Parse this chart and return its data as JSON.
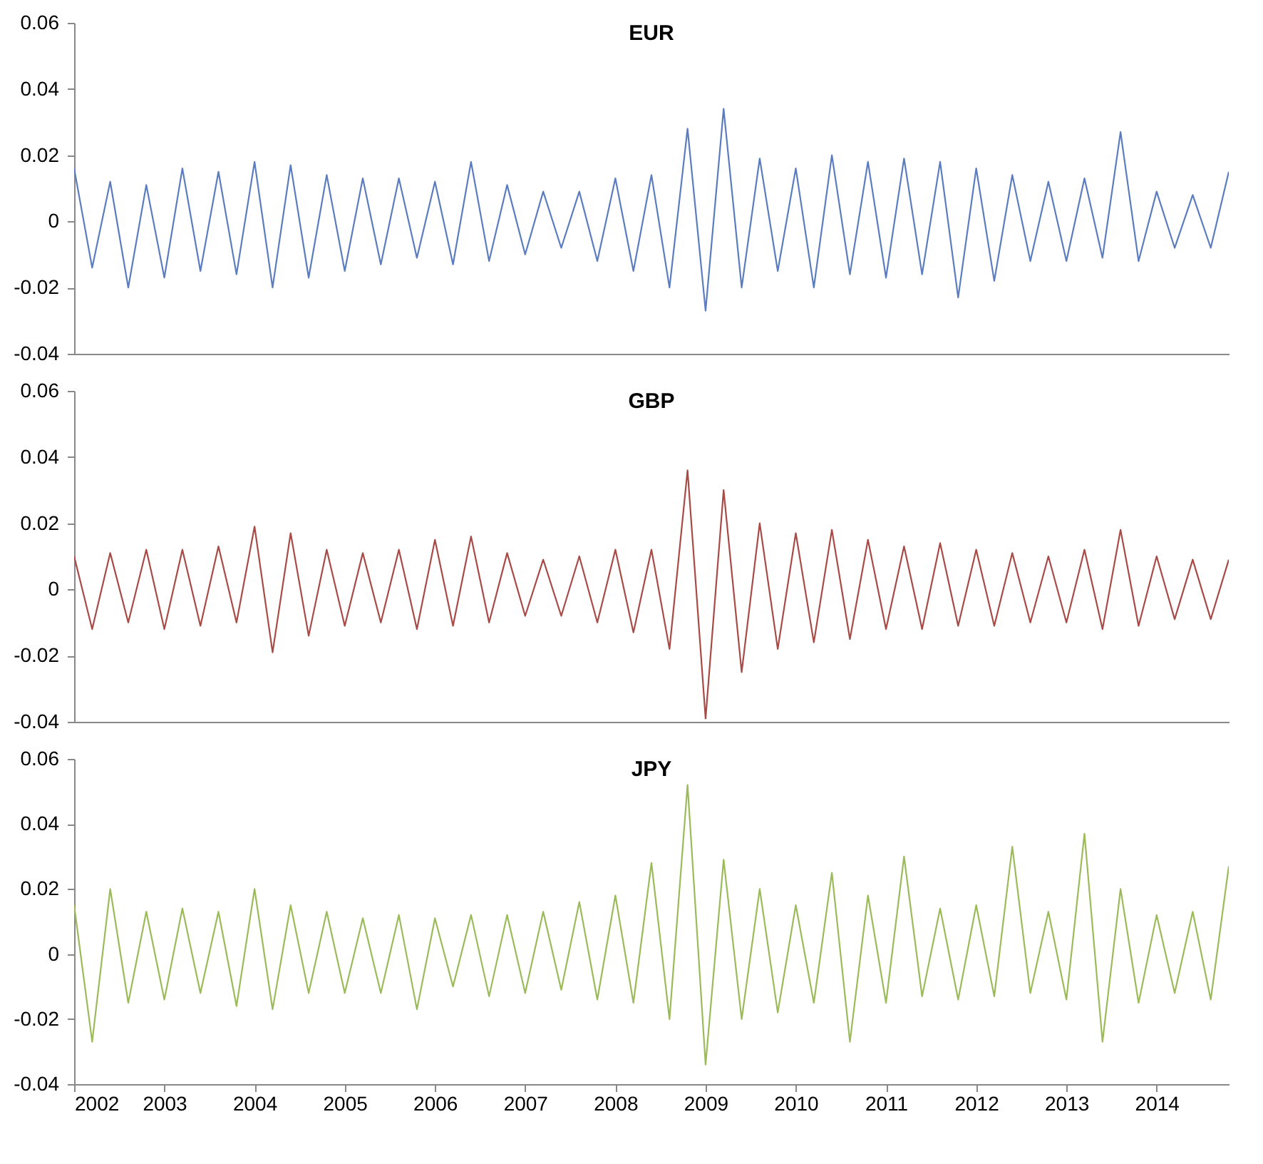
{
  "chart_data": [
    {
      "type": "line",
      "title": "EUR",
      "tick_labels": "y",
      "xlim": [
        2002,
        2014.8
      ],
      "xticks": [
        2002,
        2003,
        2004,
        2005,
        2006,
        2007,
        2008,
        2009,
        2010,
        2011,
        2012,
        2013,
        2014
      ],
      "ylim": [
        -0.04,
        0.06
      ],
      "yticks": [
        -0.04,
        -0.02,
        0,
        0.02,
        0.04,
        0.06
      ],
      "x": [
        2002,
        2002.2,
        2002.4,
        2002.6,
        2002.8,
        2003,
        2003.2,
        2003.4,
        2003.6,
        2003.8,
        2004,
        2004.2,
        2004.4,
        2004.6,
        2004.8,
        2005,
        2005.2,
        2005.4,
        2005.6,
        2005.8,
        2006,
        2006.2,
        2006.4,
        2006.6,
        2006.8,
        2007,
        2007.2,
        2007.4,
        2007.6,
        2007.8,
        2008,
        2008.2,
        2008.4,
        2008.6,
        2008.8,
        2009,
        2009.2,
        2009.4,
        2009.6,
        2009.8,
        2010,
        2010.2,
        2010.4,
        2010.6,
        2010.8,
        2011,
        2011.2,
        2011.4,
        2011.6,
        2011.8,
        2012,
        2012.2,
        2012.4,
        2012.6,
        2012.8,
        2013,
        2013.2,
        2013.4,
        2013.6,
        2013.8,
        2014,
        2014.2,
        2014.4,
        2014.6,
        2014.8
      ],
      "series": [
        {
          "color": "#5b7dbf",
          "values": [
            0.016,
            -0.014,
            0.012,
            -0.02,
            0.011,
            -0.017,
            0.016,
            -0.015,
            0.015,
            -0.016,
            0.018,
            -0.02,
            0.017,
            -0.017,
            0.014,
            -0.015,
            0.013,
            -0.013,
            0.013,
            -0.011,
            0.012,
            -0.013,
            0.018,
            -0.012,
            0.011,
            -0.01,
            0.009,
            -0.008,
            0.009,
            -0.012,
            0.013,
            -0.015,
            0.014,
            -0.02,
            0.028,
            -0.027,
            0.034,
            -0.02,
            0.019,
            -0.015,
            0.016,
            -0.02,
            0.02,
            -0.016,
            0.018,
            -0.017,
            0.019,
            -0.016,
            0.018,
            -0.023,
            0.016,
            -0.018,
            0.014,
            -0.012,
            0.012,
            -0.012,
            0.013,
            -0.011,
            0.027,
            -0.012,
            0.009,
            -0.008,
            0.008,
            -0.008,
            0.015
          ]
        }
      ]
    },
    {
      "type": "line",
      "title": "GBP",
      "tick_labels": "y",
      "xlim": [
        2002,
        2014.8
      ],
      "xticks": [
        2002,
        2003,
        2004,
        2005,
        2006,
        2007,
        2008,
        2009,
        2010,
        2011,
        2012,
        2013,
        2014
      ],
      "ylim": [
        -0.04,
        0.06
      ],
      "yticks": [
        -0.04,
        -0.02,
        0,
        0.02,
        0.04,
        0.06
      ],
      "x": [
        2002,
        2002.2,
        2002.4,
        2002.6,
        2002.8,
        2003,
        2003.2,
        2003.4,
        2003.6,
        2003.8,
        2004,
        2004.2,
        2004.4,
        2004.6,
        2004.8,
        2005,
        2005.2,
        2005.4,
        2005.6,
        2005.8,
        2006,
        2006.2,
        2006.4,
        2006.6,
        2006.8,
        2007,
        2007.2,
        2007.4,
        2007.6,
        2007.8,
        2008,
        2008.2,
        2008.4,
        2008.6,
        2008.8,
        2009,
        2009.2,
        2009.4,
        2009.6,
        2009.8,
        2010,
        2010.2,
        2010.4,
        2010.6,
        2010.8,
        2011,
        2011.2,
        2011.4,
        2011.6,
        2011.8,
        2012,
        2012.2,
        2012.4,
        2012.6,
        2012.8,
        2013,
        2013.2,
        2013.4,
        2013.6,
        2013.8,
        2014,
        2014.2,
        2014.4,
        2014.6,
        2014.8
      ],
      "series": [
        {
          "color": "#a84b47",
          "values": [
            0.01,
            -0.012,
            0.011,
            -0.01,
            0.012,
            -0.012,
            0.012,
            -0.011,
            0.013,
            -0.01,
            0.019,
            -0.019,
            0.017,
            -0.014,
            0.012,
            -0.011,
            0.011,
            -0.01,
            0.012,
            -0.012,
            0.015,
            -0.011,
            0.016,
            -0.01,
            0.011,
            -0.008,
            0.009,
            -0.008,
            0.01,
            -0.01,
            0.012,
            -0.013,
            0.012,
            -0.018,
            0.036,
            -0.039,
            0.03,
            -0.025,
            0.02,
            -0.018,
            0.017,
            -0.016,
            0.018,
            -0.015,
            0.015,
            -0.012,
            0.013,
            -0.012,
            0.014,
            -0.011,
            0.012,
            -0.011,
            0.011,
            -0.01,
            0.01,
            -0.01,
            0.012,
            -0.012,
            0.018,
            -0.011,
            0.01,
            -0.009,
            0.009,
            -0.009,
            0.009
          ]
        }
      ]
    },
    {
      "type": "line",
      "title": "JPY",
      "xlim": [
        2002,
        2014.8
      ],
      "xticks": [
        2002,
        2003,
        2004,
        2005,
        2006,
        2007,
        2008,
        2009,
        2010,
        2011,
        2012,
        2013,
        2014
      ],
      "ylim": [
        -0.04,
        0.06
      ],
      "yticks": [
        -0.04,
        -0.02,
        0,
        0.02,
        0.04,
        0.06
      ],
      "x": [
        2002,
        2002.2,
        2002.4,
        2002.6,
        2002.8,
        2003,
        2003.2,
        2003.4,
        2003.6,
        2003.8,
        2004,
        2004.2,
        2004.4,
        2004.6,
        2004.8,
        2005,
        2005.2,
        2005.4,
        2005.6,
        2005.8,
        2006,
        2006.2,
        2006.4,
        2006.6,
        2006.8,
        2007,
        2007.2,
        2007.4,
        2007.6,
        2007.8,
        2008,
        2008.2,
        2008.4,
        2008.6,
        2008.8,
        2009,
        2009.2,
        2009.4,
        2009.6,
        2009.8,
        2010,
        2010.2,
        2010.4,
        2010.6,
        2010.8,
        2011,
        2011.2,
        2011.4,
        2011.6,
        2011.8,
        2012,
        2012.2,
        2012.4,
        2012.6,
        2012.8,
        2013,
        2013.2,
        2013.4,
        2013.6,
        2013.8,
        2014,
        2014.2,
        2014.4,
        2014.6,
        2014.8
      ],
      "series": [
        {
          "color": "#9bbb59",
          "values": [
            0.015,
            -0.027,
            0.02,
            -0.015,
            0.013,
            -0.014,
            0.014,
            -0.012,
            0.013,
            -0.016,
            0.02,
            -0.017,
            0.015,
            -0.012,
            0.013,
            -0.012,
            0.011,
            -0.012,
            0.012,
            -0.017,
            0.011,
            -0.01,
            0.012,
            -0.013,
            0.012,
            -0.012,
            0.013,
            -0.011,
            0.016,
            -0.014,
            0.018,
            -0.015,
            0.028,
            -0.02,
            0.052,
            -0.034,
            0.029,
            -0.02,
            0.02,
            -0.018,
            0.015,
            -0.015,
            0.025,
            -0.027,
            0.018,
            -0.015,
            0.03,
            -0.013,
            0.014,
            -0.014,
            0.015,
            -0.013,
            0.033,
            -0.012,
            0.013,
            -0.014,
            0.037,
            -0.027,
            0.02,
            -0.015,
            0.012,
            -0.012,
            0.013,
            -0.014,
            0.027
          ]
        }
      ]
    }
  ]
}
